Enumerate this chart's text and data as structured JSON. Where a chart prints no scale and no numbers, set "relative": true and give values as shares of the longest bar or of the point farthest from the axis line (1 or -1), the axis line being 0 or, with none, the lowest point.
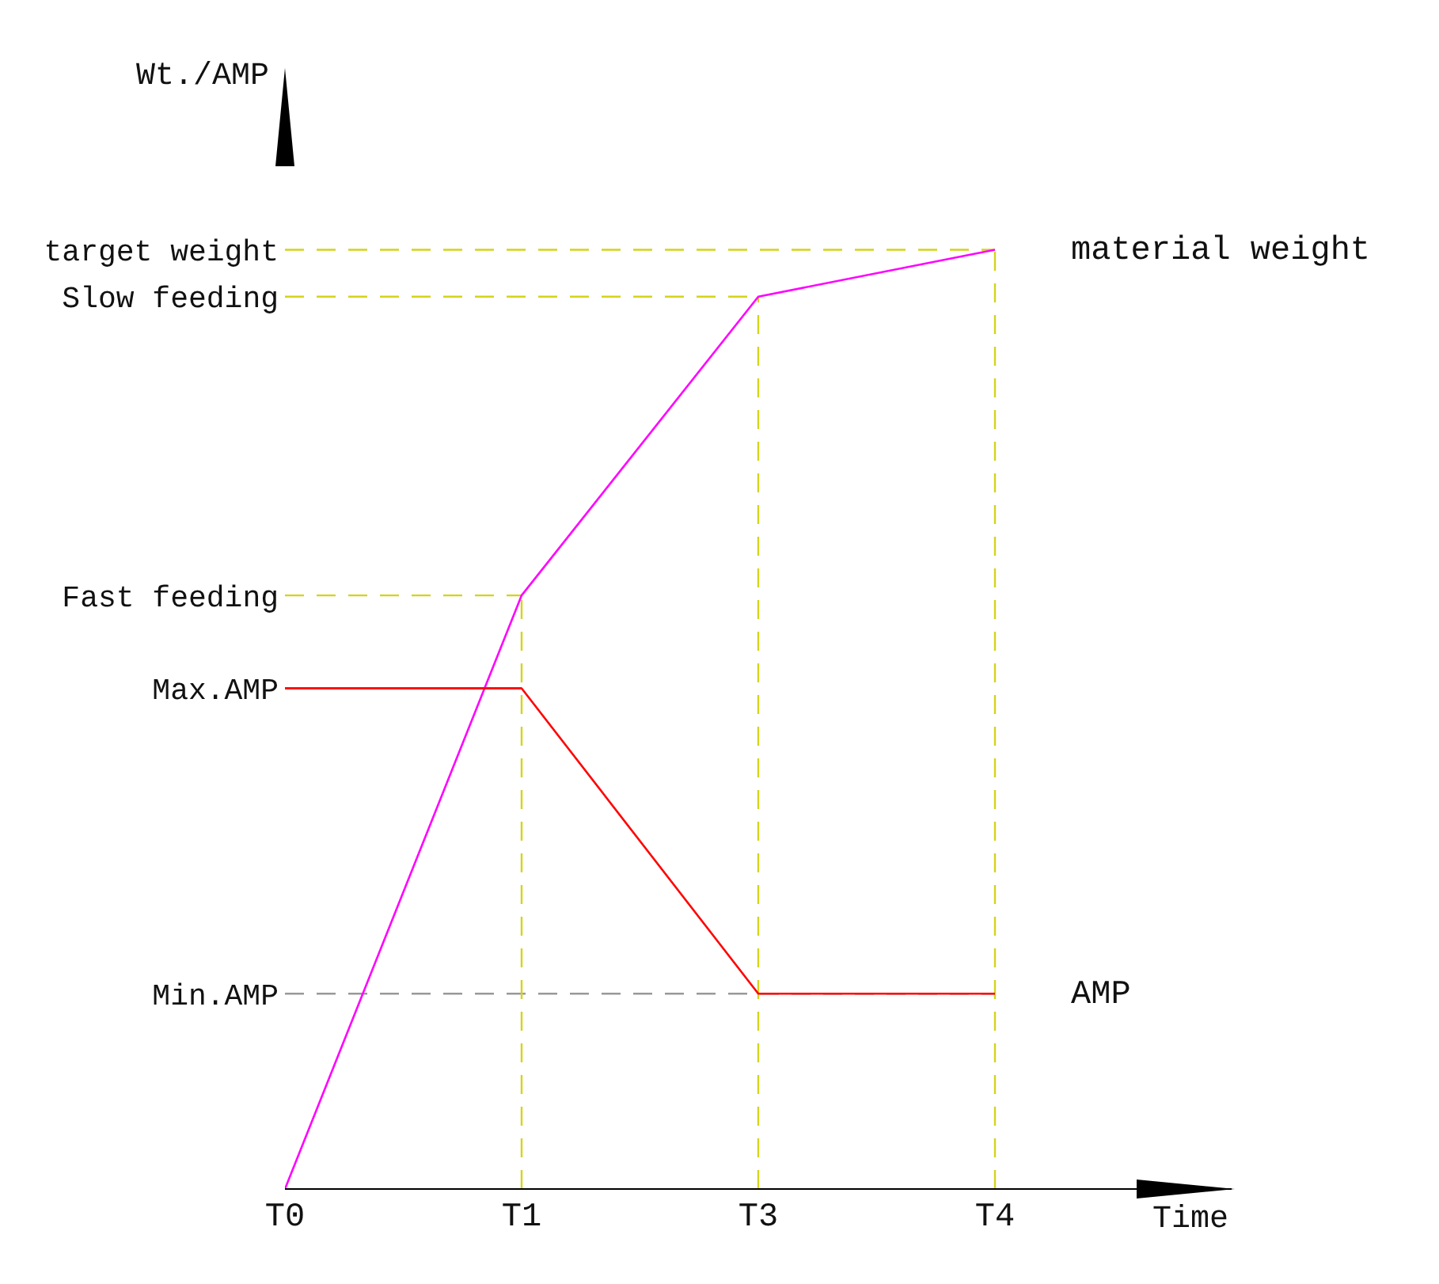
{
  "chart_data": {
    "type": "line",
    "relative": true,
    "xlabel": "Time",
    "ylabel": "Wt./AMP",
    "categories": [
      "T0",
      "T1",
      "T3",
      "T4"
    ],
    "legend": false,
    "grid": false,
    "marker": "none",
    "line_style": "solid",
    "series": [
      {
        "name": "material weight",
        "color": "#ff00ff",
        "values": [
          0,
          0.632,
          0.95,
          1
        ]
      },
      {
        "name": "AMP",
        "color": "#ff0000",
        "values": [
          0.533,
          0.533,
          0.208,
          0.208
        ]
      }
    ],
    "ref_lines": [
      {
        "axis": "y",
        "value": 1,
        "label": "target weight",
        "color": "#d4d41a",
        "line_style": "dashed"
      },
      {
        "axis": "y",
        "value": 0.95,
        "label": "Slow feeding",
        "color": "#d4d41a",
        "line_style": "dashed"
      },
      {
        "axis": "y",
        "value": 0.632,
        "label": "Fast feeding",
        "color": "#d4d41a",
        "line_style": "dashed"
      },
      {
        "axis": "y",
        "value": 0.533,
        "label": "Max.AMP",
        "color": "#ff0000",
        "line_style": "solid"
      },
      {
        "axis": "y",
        "value": 0.208,
        "label": "Min.AMP",
        "color": "#999999",
        "line_style": "dashed"
      },
      {
        "axis": "x",
        "value": "T1",
        "color": "#d4d41a",
        "line_style": "dashed"
      },
      {
        "axis": "x",
        "value": "T3",
        "color": "#d4d41a",
        "line_style": "dashed"
      },
      {
        "axis": "x",
        "value": "T4",
        "color": "#d4d41a",
        "line_style": "dashed"
      }
    ]
  }
}
